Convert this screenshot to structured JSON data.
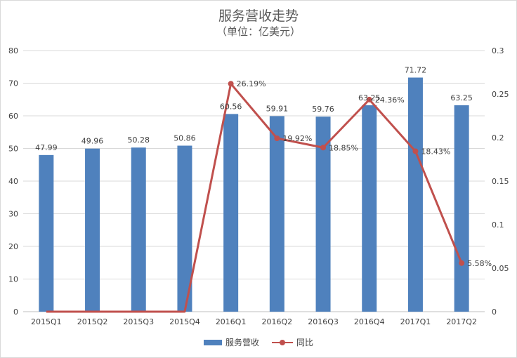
{
  "chart_data": {
    "type": "bar",
    "title": "服务营收走势",
    "subtitle": "（单位：亿美元）",
    "categories": [
      "2015Q1",
      "2015Q2",
      "2015Q3",
      "2015Q4",
      "2016Q1",
      "2016Q2",
      "2016Q3",
      "2016Q4",
      "2017Q1",
      "2017Q2"
    ],
    "series": [
      {
        "name": "服务营收",
        "type": "bar",
        "axis": "left",
        "color": "#4f81bd",
        "values": [
          47.99,
          49.96,
          50.28,
          50.86,
          60.56,
          59.91,
          59.76,
          63.25,
          71.72,
          63.25
        ],
        "labels": [
          "47.99",
          "49.96",
          "50.28",
          "50.86",
          "60.56",
          "59.91",
          "59.76",
          "63.25",
          "71.72",
          "63.25"
        ]
      },
      {
        "name": "同比",
        "type": "line",
        "axis": "right",
        "color": "#c0504d",
        "values": [
          0,
          0,
          0,
          0,
          0.2619,
          0.1992,
          0.1885,
          0.2436,
          0.1843,
          0.0558
        ],
        "labels": [
          "",
          "",
          "",
          "",
          "26.19%",
          "19.92%",
          "18.85%",
          "24.36%",
          "18.43%",
          "5.58%"
        ]
      }
    ],
    "y_left": {
      "min": 0,
      "max": 80,
      "ticks": [
        "0",
        "10",
        "20",
        "30",
        "40",
        "50",
        "60",
        "70",
        "80"
      ]
    },
    "y_right": {
      "min": 0,
      "max": 0.3,
      "ticks": [
        "0",
        "0.05",
        "0.1",
        "0.15",
        "0.2",
        "0.25",
        "0.3"
      ]
    },
    "grid": true,
    "legend_position": "bottom"
  }
}
